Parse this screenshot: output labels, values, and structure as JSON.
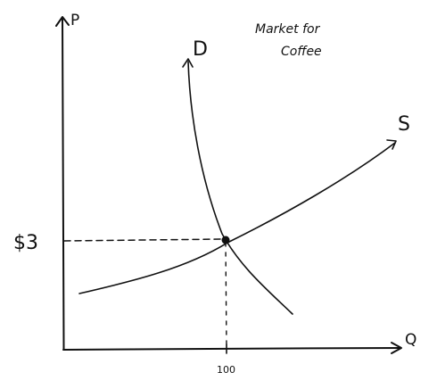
{
  "title": {
    "line1": "Market for",
    "line2": "Coffee"
  },
  "axes": {
    "y_label": "P",
    "x_label": "Q"
  },
  "curves": {
    "demand_label": "D",
    "supply_label": "S"
  },
  "equilibrium": {
    "price_label": "$3",
    "quantity_label": "100"
  },
  "colors": {
    "ink": "#111111",
    "background": "#ffffff"
  }
}
